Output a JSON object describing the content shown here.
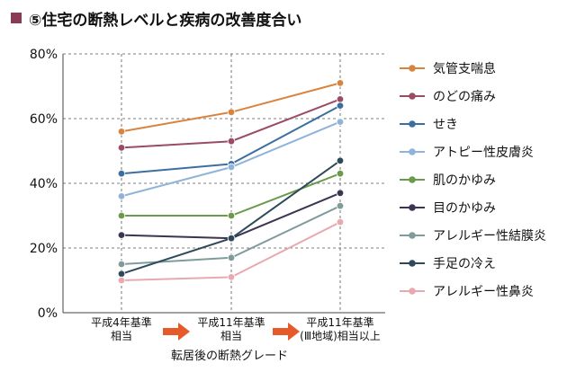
{
  "chart_data": {
    "type": "line",
    "title": "⑤住宅の断熱レベルと疾病の改善度合い",
    "title_marker_color": "#8a3b54",
    "xlabel": "転居後の断熱グレード",
    "ylabel": "",
    "ylim": [
      0,
      80
    ],
    "yticks": [
      0,
      20,
      40,
      60,
      80
    ],
    "ytick_labels": [
      "0%",
      "20%",
      "40%",
      "60%",
      "80%"
    ],
    "grid": "horizontal dashed",
    "legend_position": "right",
    "categories": [
      [
        "平成4年基準",
        "相当"
      ],
      [
        "平成11年基準",
        "相当"
      ],
      [
        "平成11年基準",
        "(Ⅲ地域)相当以上"
      ]
    ],
    "arrow_color": "#e65a2a",
    "series": [
      {
        "name": "気管支喘息",
        "color": "#d9843e",
        "values": [
          56,
          62,
          71
        ]
      },
      {
        "name": "のどの痛み",
        "color": "#9a4c63",
        "values": [
          51,
          53,
          66
        ]
      },
      {
        "name": "せき",
        "color": "#3c6f9f",
        "values": [
          43,
          46,
          64
        ]
      },
      {
        "name": "アトピー性皮膚炎",
        "color": "#8fb3d9",
        "values": [
          36,
          45,
          59
        ]
      },
      {
        "name": "肌のかゆみ",
        "color": "#6a9a4a",
        "values": [
          30,
          30,
          43
        ]
      },
      {
        "name": "目のかゆみ",
        "color": "#3c3450",
        "values": [
          24,
          23,
          37
        ]
      },
      {
        "name": "アレルギー性結膜炎",
        "color": "#7f9c9a",
        "values": [
          15,
          17,
          33
        ]
      },
      {
        "name": "手足の冷え",
        "color": "#2e4a5a",
        "values": [
          12,
          23,
          47
        ]
      },
      {
        "name": "アレルギー性鼻炎",
        "color": "#e8a9b0",
        "values": [
          10,
          11,
          28
        ]
      }
    ]
  }
}
